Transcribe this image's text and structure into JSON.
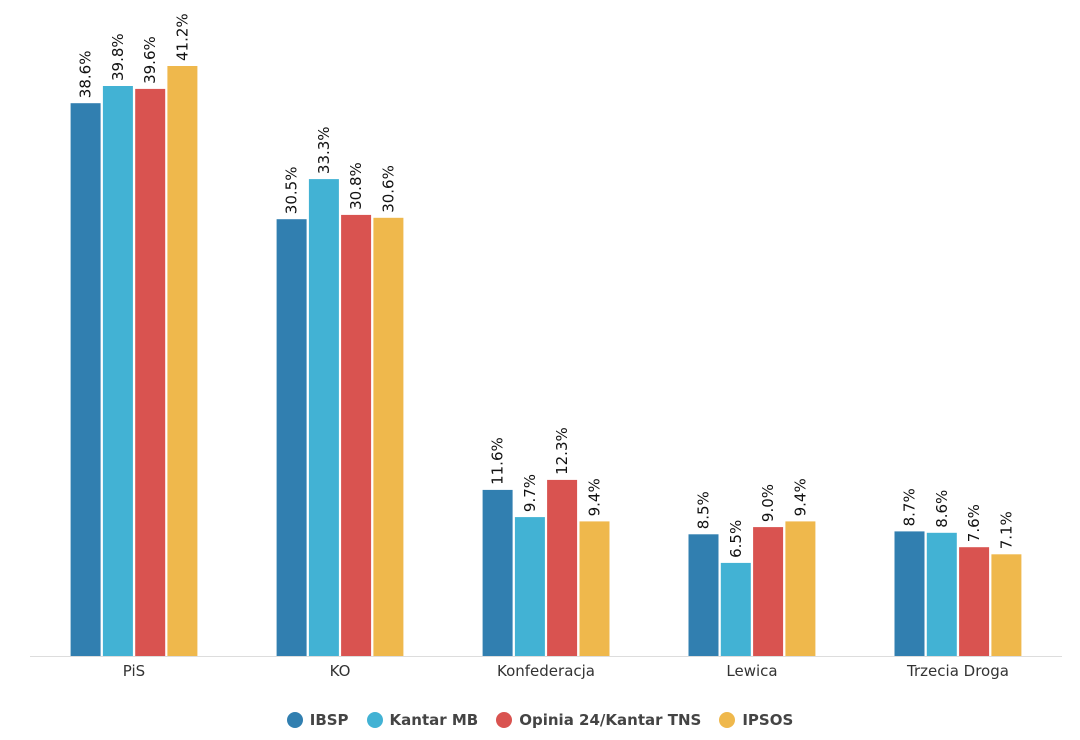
{
  "chart_data": {
    "type": "bar",
    "title": "",
    "xlabel": "",
    "ylabel": "",
    "ylim": [
      0,
      42
    ],
    "grid": false,
    "legend_position": "bottom-center",
    "categories": [
      "PiS",
      "KO",
      "Konfederacja",
      "Lewica",
      "Trzecia Droga"
    ],
    "series": [
      {
        "name": "IBSP",
        "color": "#317fb0",
        "values": [
          38.6,
          30.5,
          11.6,
          8.5,
          8.7
        ],
        "labels": [
          "38.6%",
          "30.5%",
          "11.6%",
          "8.5%",
          "8.7%"
        ]
      },
      {
        "name": "Kantar MB",
        "color": "#42b2d4",
        "values": [
          39.8,
          33.3,
          9.7,
          6.5,
          8.6
        ],
        "labels": [
          "39.8%",
          "33.3%",
          "9.7%",
          "6.5%",
          "8.6%"
        ]
      },
      {
        "name": "Opinia 24/Kantar TNS",
        "color": "#d95350",
        "values": [
          39.6,
          30.8,
          12.3,
          9.0,
          7.6
        ],
        "labels": [
          "39.6%",
          "30.8%",
          "12.3%",
          "9.0%",
          "7.6%"
        ]
      },
      {
        "name": "IPSOS",
        "color": "#efb84c",
        "values": [
          41.2,
          30.6,
          9.4,
          9.4,
          7.1
        ],
        "labels": [
          "41.2%",
          "30.6%",
          "9.4%",
          "9.4%",
          "7.1%"
        ]
      }
    ]
  }
}
